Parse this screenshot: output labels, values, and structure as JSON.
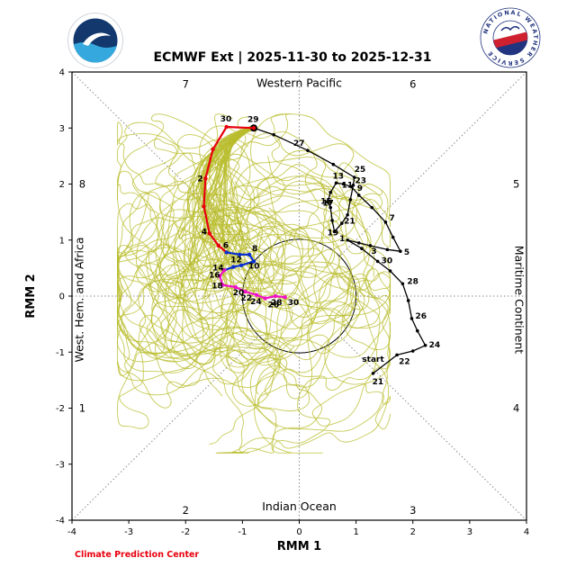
{
  "header": {
    "nws_logo_text": "NATIONAL WEATHER SERVICE"
  },
  "footer": {
    "credit": "Climate Prediction Center",
    "credit_color": "#e8000d"
  },
  "chart_data": {
    "type": "line",
    "title": "ECMWF Ext | 2025-11-30 to 2025-12-31",
    "xlabel": "RMM 1",
    "ylabel": "RMM 2",
    "xlim": [
      -4,
      4
    ],
    "ylim": [
      -4,
      4
    ],
    "xticks": [
      -4,
      -3,
      -2,
      -1,
      0,
      1,
      2,
      3,
      4
    ],
    "yticks": [
      -4,
      -3,
      -2,
      -1,
      0,
      1,
      2,
      3,
      4
    ],
    "grid": false,
    "unit_circle": {
      "cx": 0,
      "cy": 0,
      "r": 1
    },
    "quadrant_labels": [
      {
        "text": "Western Pacific",
        "x": 0,
        "y": 3.8,
        "rotate": 0
      },
      {
        "text": "Indian Ocean",
        "x": 0,
        "y": -3.76,
        "rotate": 0
      },
      {
        "text": "West. Hem. and Africa",
        "x": -3.8,
        "y": 0,
        "rotate": -90
      },
      {
        "text": "Maritime Continent",
        "x": 3.8,
        "y": 0,
        "rotate": 90
      }
    ],
    "phase_numbers": [
      {
        "label": "7",
        "x": -2,
        "y": 3.78
      },
      {
        "label": "6",
        "x": 2,
        "y": 3.78
      },
      {
        "label": "8",
        "x": -3.82,
        "y": 2
      },
      {
        "label": "5",
        "x": 3.82,
        "y": 2
      },
      {
        "label": "1",
        "x": -3.82,
        "y": -2
      },
      {
        "label": "4",
        "x": 3.82,
        "y": -2
      },
      {
        "label": "2",
        "x": -2,
        "y": -3.82
      },
      {
        "label": "3",
        "x": 2,
        "y": -3.82
      }
    ],
    "annotations": [
      {
        "text": "start",
        "x": 1.3,
        "y": -1.17
      }
    ],
    "series": [
      {
        "name": "observed",
        "color": "#000000",
        "width": 1.3,
        "marker": 1.8,
        "end_marker": 4,
        "points": [
          {
            "x": 1.3,
            "y": -1.38,
            "label": "21",
            "dx": -1,
            "dy": 12
          },
          {
            "x": 1.72,
            "y": -1.05,
            "label": "22",
            "dx": 2,
            "dy": 10
          },
          {
            "x": 2.0,
            "y": -0.98
          },
          {
            "x": 2.22,
            "y": -0.88,
            "label": "24",
            "dx": 4,
            "dy": 2
          },
          {
            "x": 2.08,
            "y": -0.62
          },
          {
            "x": 1.98,
            "y": -0.4,
            "label": "26",
            "dx": 4,
            "dy": 0
          },
          {
            "x": 1.92,
            "y": -0.08
          },
          {
            "x": 1.82,
            "y": 0.22,
            "label": "28",
            "dx": 5,
            "dy": 0
          },
          {
            "x": 1.6,
            "y": 0.45
          },
          {
            "x": 1.38,
            "y": 0.62,
            "label": "30",
            "dx": 4,
            "dy": 2
          },
          {
            "x": 1.1,
            "y": 0.85
          },
          {
            "x": 0.85,
            "y": 1.0,
            "label": "1",
            "dx": -9,
            "dy": 1
          },
          {
            "x": 1.05,
            "y": 0.95
          },
          {
            "x": 1.25,
            "y": 0.9,
            "label": "3",
            "dx": 1,
            "dy": 9
          },
          {
            "x": 1.55,
            "y": 0.83
          },
          {
            "x": 1.78,
            "y": 0.8,
            "label": "5",
            "dx": 4,
            "dy": 4
          },
          {
            "x": 1.65,
            "y": 1.05
          },
          {
            "x": 1.52,
            "y": 1.32,
            "label": "7",
            "dx": 4,
            "dy": -2
          },
          {
            "x": 1.28,
            "y": 1.58
          },
          {
            "x": 1.05,
            "y": 1.8,
            "label": "9",
            "dx": -2,
            "dy": -5
          },
          {
            "x": 0.92,
            "y": 1.95,
            "label": "11",
            "dx": -11,
            "dy": 1
          },
          {
            "x": 0.78,
            "y": 2.0
          },
          {
            "x": 0.65,
            "y": 2.02,
            "label": "13",
            "dx": -4,
            "dy": -5
          },
          {
            "x": 0.55,
            "y": 1.85
          },
          {
            "x": 0.5,
            "y": 1.68,
            "label": "15",
            "dx": -8,
            "dy": 2
          },
          {
            "x": 0.55,
            "y": 1.58,
            "label": "17",
            "dx": -9,
            "dy": -2
          },
          {
            "x": 0.58,
            "y": 1.35
          },
          {
            "x": 0.62,
            "y": 1.15,
            "label": "19",
            "dx": -8,
            "dy": 4
          },
          {
            "x": 0.75,
            "y": 1.3
          },
          {
            "x": 0.85,
            "y": 1.45,
            "label": "21",
            "dx": -4,
            "dy": 10
          },
          {
            "x": 0.9,
            "y": 1.72
          },
          {
            "x": 0.95,
            "y": 1.98,
            "label": "23",
            "dx": 2,
            "dy": -2
          },
          {
            "x": 0.97,
            "y": 2.12,
            "label": "25",
            "dx": 0,
            "dy": -6
          },
          {
            "x": 0.6,
            "y": 2.35
          },
          {
            "x": 0.15,
            "y": 2.6,
            "label": "27",
            "dx": -16,
            "dy": -5
          },
          {
            "x": -0.45,
            "y": 2.88
          },
          {
            "x": -0.8,
            "y": 3.0,
            "label": "29",
            "dx": -7,
            "dy": -7
          }
        ]
      },
      {
        "name": "forecast-days-1-7",
        "color": "#e8000d",
        "width": 2.2,
        "marker": 2.2,
        "points": [
          {
            "x": -0.8,
            "y": 3.0
          },
          {
            "x": -1.28,
            "y": 3.02,
            "label": "30",
            "dx": -7,
            "dy": -6
          },
          {
            "x": -1.52,
            "y": 2.62
          },
          {
            "x": -1.65,
            "y": 2.1,
            "label": "2",
            "dx": -9,
            "dy": 3
          },
          {
            "x": -1.68,
            "y": 1.6
          },
          {
            "x": -1.58,
            "y": 1.12,
            "label": "4",
            "dx": -9,
            "dy": 1
          },
          {
            "x": -1.42,
            "y": 0.9
          },
          {
            "x": -1.28,
            "y": 0.78,
            "label": "6",
            "dx": -4,
            "dy": -5
          }
        ]
      },
      {
        "name": "forecast-days-8-14",
        "color": "#0a2fd0",
        "width": 2.2,
        "marker": 2.2,
        "points": [
          {
            "x": -1.28,
            "y": 0.78
          },
          {
            "x": -1.05,
            "y": 0.74
          },
          {
            "x": -0.88,
            "y": 0.74,
            "label": "8",
            "dx": 3,
            "dy": -4
          },
          {
            "x": -0.8,
            "y": 0.62,
            "label": "10",
            "dx": -6,
            "dy": 8
          },
          {
            "x": -1.02,
            "y": 0.55
          },
          {
            "x": -1.16,
            "y": 0.52,
            "label": "12",
            "dx": -3,
            "dy": -5
          },
          {
            "x": -1.32,
            "y": 0.46,
            "label": "14",
            "dx": -13,
            "dy": 0
          }
        ]
      },
      {
        "name": "forecast-days-15-31",
        "color": "#f012c8",
        "width": 2.2,
        "marker": 2.2,
        "points": [
          {
            "x": -1.32,
            "y": 0.46
          },
          {
            "x": -1.4,
            "y": 0.36,
            "label": "16",
            "dx": -12,
            "dy": 2
          },
          {
            "x": -1.35,
            "y": 0.2,
            "label": "18",
            "dx": -12,
            "dy": 4
          },
          {
            "x": -1.12,
            "y": 0.16,
            "label": "20",
            "dx": -3,
            "dy": 9
          },
          {
            "x": -0.95,
            "y": 0.08,
            "label": "22",
            "dx": -5,
            "dy": 10
          },
          {
            "x": -0.75,
            "y": 0.02,
            "label": "24",
            "dx": -7,
            "dy": 10
          },
          {
            "x": -0.6,
            "y": -0.04,
            "label": "26",
            "dx": 3,
            "dy": 10
          },
          {
            "x": -0.42,
            "y": 0.0,
            "label": "28",
            "dx": -5,
            "dy": 10
          },
          {
            "x": -0.25,
            "y": -0.02,
            "label": "30",
            "dx": 3,
            "dy": 9
          }
        ]
      }
    ],
    "ensemble": {
      "name": "ensemble-members",
      "color": "#b9bd2d",
      "opacity": 0.8,
      "width": 0.9,
      "count": 50,
      "seed": 20251130,
      "start": [
        -0.82,
        3.0
      ],
      "guide": [
        [
          -1.25,
          2.85
        ],
        [
          -1.6,
          2.1
        ],
        [
          -1.62,
          1.3
        ],
        [
          -1.42,
          0.72
        ]
      ],
      "attractor": [
        -1.0,
        0.25
      ],
      "step": 0.34,
      "steps_min": 34,
      "steps_rand": 14,
      "turn": 2.4,
      "pull": 0.055,
      "bounds": [
        -3.2,
        -2.8,
        1.6,
        3.25
      ]
    }
  }
}
